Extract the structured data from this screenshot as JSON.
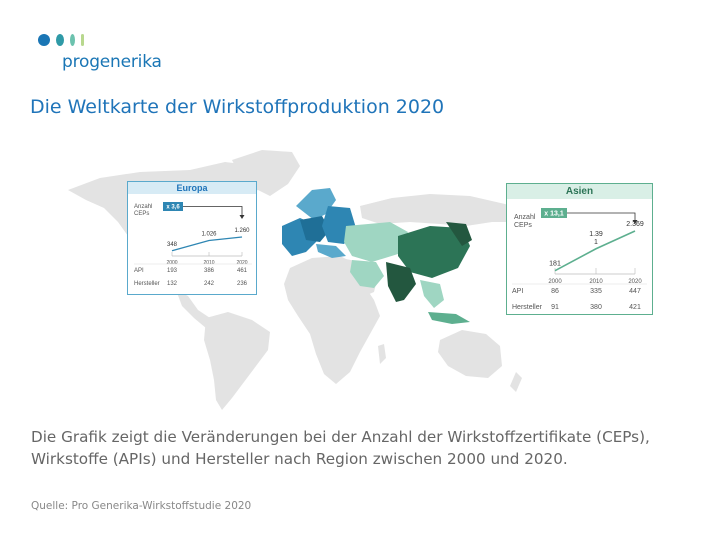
{
  "brand": {
    "name": "progenerika",
    "dot_colors": [
      "#1a76b5",
      "#2f9aa7",
      "#6cc2ae",
      "#b8d88e"
    ]
  },
  "title": "Die Weltkarte der Wirkstoffproduktion 2020",
  "description": "Die Grafik zeigt die Veränderungen bei der Anzahl der Wirkstoffzertifikate (CEPs), Wirkstoffe (APIs) und Hersteller nach Region zwischen 2000 und 2020.",
  "source": "Quelle: Pro Generika-Wirkstoffstudie 2020",
  "colors": {
    "europe_dark": "#1f6f97",
    "europe_mid": "#2e86b3",
    "europe_light": "#5aa9cc",
    "asia_darkest": "#23573f",
    "asia_dark": "#2c7456",
    "asia_mid": "#5daf8f",
    "asia_light": "#9fd6c2",
    "land_gray": "#e3e3e3"
  },
  "chart_data": [
    {
      "type": "line",
      "title": "Europa",
      "ylabel": "Anzahl CEPs",
      "badge": "x 3,6",
      "x": [
        "2000",
        "2010",
        "2020"
      ],
      "series": [
        {
          "values": [
            348,
            1026,
            1260
          ]
        }
      ],
      "point_labels": [
        "348",
        "1.026",
        "1.260"
      ],
      "table": {
        "rows": [
          {
            "label": "API",
            "values": [
              "193",
              "386",
              "461"
            ]
          },
          {
            "label": "Hersteller",
            "values": [
              "132",
              "242",
              "236"
            ]
          }
        ]
      },
      "accent": "#2e86b3"
    },
    {
      "type": "line",
      "title": "Asien",
      "ylabel": "Anzahl CEPs",
      "badge": "x 13,1",
      "x": [
        "2000",
        "2010",
        "2020"
      ],
      "series": [
        {
          "values": [
            181,
            1391,
            2369
          ]
        }
      ],
      "point_labels": [
        "181",
        "1.39\n1",
        "2.369"
      ],
      "table": {
        "rows": [
          {
            "label": "API",
            "values": [
              "86",
              "335",
              "447"
            ]
          },
          {
            "label": "Hersteller",
            "values": [
              "91",
              "380",
              "421"
            ]
          }
        ]
      },
      "accent": "#5daf8f"
    }
  ]
}
